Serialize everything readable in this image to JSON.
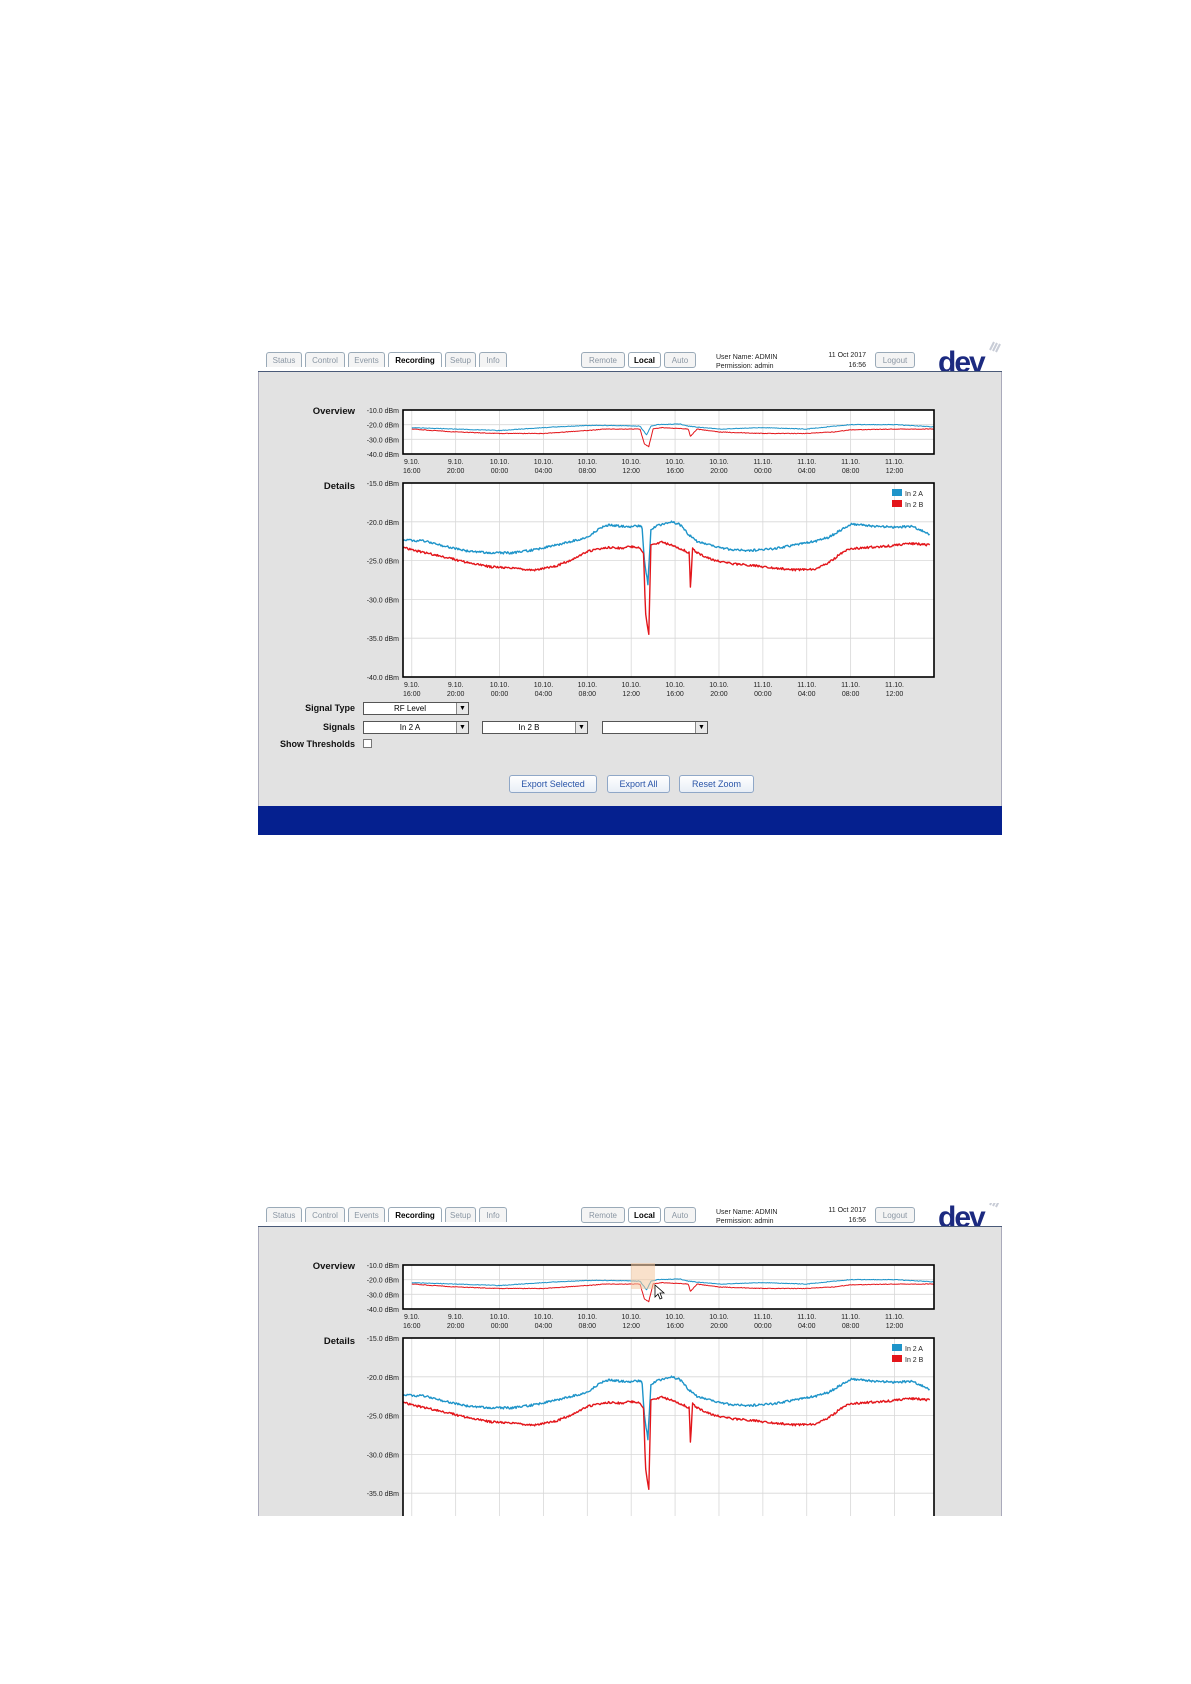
{
  "tabs": [
    "Status",
    "Control",
    "Events",
    "Recording",
    "Setup",
    "Info"
  ],
  "active_tab": "Recording",
  "modes": [
    "Remote",
    "Local",
    "Auto"
  ],
  "active_mode": "Local",
  "user": {
    "line1": "User Name: ADMIN",
    "line2": "Permission: admin"
  },
  "date": "11 Oct 2017",
  "time": "16:56",
  "logout_label": "Logout",
  "logo_text": "dev",
  "labels": {
    "overview": "Overview",
    "details": "Details",
    "signal_type": "Signal Type",
    "signals": "Signals",
    "show_thresholds": "Show Thresholds"
  },
  "controls": {
    "signal_type_value": "RF Level",
    "signal1": "In 2 A",
    "signal2": "In 2 B",
    "signal3": "",
    "show_thresholds": false
  },
  "buttons": {
    "export_selected": "Export Selected",
    "export_all": "Export All",
    "reset_zoom": "Reset Zoom"
  },
  "colors": {
    "in2a": "#1e94c9",
    "in2b": "#e3161b",
    "footer": "#05208f",
    "panel": "#e2e2e2"
  },
  "chart_data": [
    {
      "name": "Overview",
      "type": "line",
      "y_ticks": [
        "-10.0 dBm",
        "-20.0 dBm",
        "-30.0 dBm",
        "-40.0 dBm"
      ],
      "ylim": [
        -40,
        -10
      ],
      "x_ticks": [
        [
          "9.10.",
          "16:00"
        ],
        [
          "9.10.",
          "20:00"
        ],
        [
          "10.10.",
          "00:00"
        ],
        [
          "10.10.",
          "04:00"
        ],
        [
          "10.10.",
          "08:00"
        ],
        [
          "10.10.",
          "12:00"
        ],
        [
          "10.10.",
          "16:00"
        ],
        [
          "10.10.",
          "20:00"
        ],
        [
          "11.10.",
          "00:00"
        ],
        [
          "11.10.",
          "04:00"
        ],
        [
          "11.10.",
          "08:00"
        ],
        [
          "11.10.",
          "12:00"
        ]
      ],
      "series": [
        {
          "name": "In 2 A",
          "x": [
            0,
            1,
            2,
            3,
            4,
            4.4,
            5,
            5.2,
            5.35,
            5.45,
            5.6,
            6.1,
            6.3,
            7,
            8,
            9,
            9.6,
            10,
            11,
            11.9
          ],
          "y": [
            -22,
            -23,
            -24,
            -22,
            -20.5,
            -20.5,
            -20.8,
            -21,
            -27,
            -21,
            -20,
            -19.5,
            -21,
            -23,
            -22,
            -23,
            -21,
            -20,
            -20,
            -21.5
          ]
        },
        {
          "name": "In 2 B",
          "x": [
            0,
            1,
            2,
            3,
            4,
            4.4,
            5,
            5.2,
            5.3,
            5.4,
            5.5,
            5.7,
            6.3,
            6.35,
            6.5,
            7,
            8,
            9,
            9.6,
            10,
            11,
            11.9
          ],
          "y": [
            -23,
            -25,
            -26,
            -26,
            -24,
            -23,
            -23,
            -23,
            -33,
            -35,
            -23,
            -22,
            -23,
            -28,
            -23,
            -25,
            -26,
            -26,
            -25,
            -23.5,
            -23,
            -23
          ]
        }
      ]
    },
    {
      "name": "Details",
      "type": "line",
      "y_ticks": [
        "-15.0 dBm",
        "-20.0 dBm",
        "-25.0 dBm",
        "-30.0 dBm",
        "-35.0 dBm",
        "-40.0 dBm"
      ],
      "ylim": [
        -40,
        -15
      ],
      "x_ticks": [
        [
          "9.10.",
          "16:00"
        ],
        [
          "9.10.",
          "20:00"
        ],
        [
          "10.10.",
          "00:00"
        ],
        [
          "10.10.",
          "04:00"
        ],
        [
          "10.10.",
          "08:00"
        ],
        [
          "10.10.",
          "12:00"
        ],
        [
          "10.10.",
          "16:00"
        ],
        [
          "10.10.",
          "20:00"
        ],
        [
          "11.10.",
          "00:00"
        ],
        [
          "11.10.",
          "04:00"
        ],
        [
          "11.10.",
          "08:00"
        ],
        [
          "11.10.",
          "12:00"
        ]
      ],
      "legend": [
        "In 2 A",
        "In 2 B"
      ],
      "series": [
        {
          "name": "In 2 A",
          "x": [
            -0.2,
            0.3,
            0.8,
            1.3,
            1.8,
            2.3,
            2.8,
            3.3,
            3.8,
            4.0,
            4.3,
            4.5,
            4.8,
            5.0,
            5.2,
            5.25,
            5.3,
            5.38,
            5.45,
            5.6,
            5.9,
            6.1,
            6.3,
            6.5,
            6.9,
            7.3,
            7.7,
            8.2,
            8.7,
            9.2,
            9.5,
            9.8,
            10.0,
            10.4,
            10.9,
            11.4,
            11.8
          ],
          "y": [
            -22.3,
            -22.5,
            -23.2,
            -23.8,
            -24.0,
            -24.0,
            -23.6,
            -23.0,
            -22.3,
            -22.0,
            -20.8,
            -20.4,
            -20.6,
            -20.6,
            -20.5,
            -20.8,
            -25,
            -28,
            -21,
            -20.5,
            -20.0,
            -20.3,
            -21.6,
            -22.5,
            -23.2,
            -23.6,
            -23.7,
            -23.5,
            -23.0,
            -22.5,
            -22.0,
            -21.0,
            -20.3,
            -20.5,
            -20.7,
            -20.6,
            -21.6
          ]
        },
        {
          "name": "In 2 B",
          "x": [
            -0.2,
            0.3,
            0.8,
            1.3,
            1.8,
            2.3,
            2.8,
            3.3,
            3.8,
            4.0,
            4.3,
            4.5,
            4.8,
            5.0,
            5.2,
            5.28,
            5.33,
            5.4,
            5.45,
            5.55,
            5.7,
            5.9,
            6.1,
            6.32,
            6.35,
            6.4,
            6.5,
            6.9,
            7.3,
            7.7,
            8.2,
            8.7,
            9.2,
            9.5,
            9.8,
            10.0,
            10.4,
            10.9,
            11.4,
            11.8
          ],
          "y": [
            -23.3,
            -24.0,
            -24.6,
            -25.3,
            -25.8,
            -26.0,
            -26.2,
            -25.7,
            -24.5,
            -23.8,
            -23.5,
            -23.3,
            -23.4,
            -23.2,
            -23.3,
            -24,
            -32,
            -34.5,
            -23,
            -22.9,
            -22.6,
            -23.0,
            -23.4,
            -24,
            -28.5,
            -23.5,
            -24,
            -25,
            -25.4,
            -25.6,
            -25.9,
            -26.2,
            -26.1,
            -25.3,
            -24.0,
            -23.5,
            -23.3,
            -23.1,
            -22.8,
            -23.0
          ]
        }
      ]
    }
  ]
}
